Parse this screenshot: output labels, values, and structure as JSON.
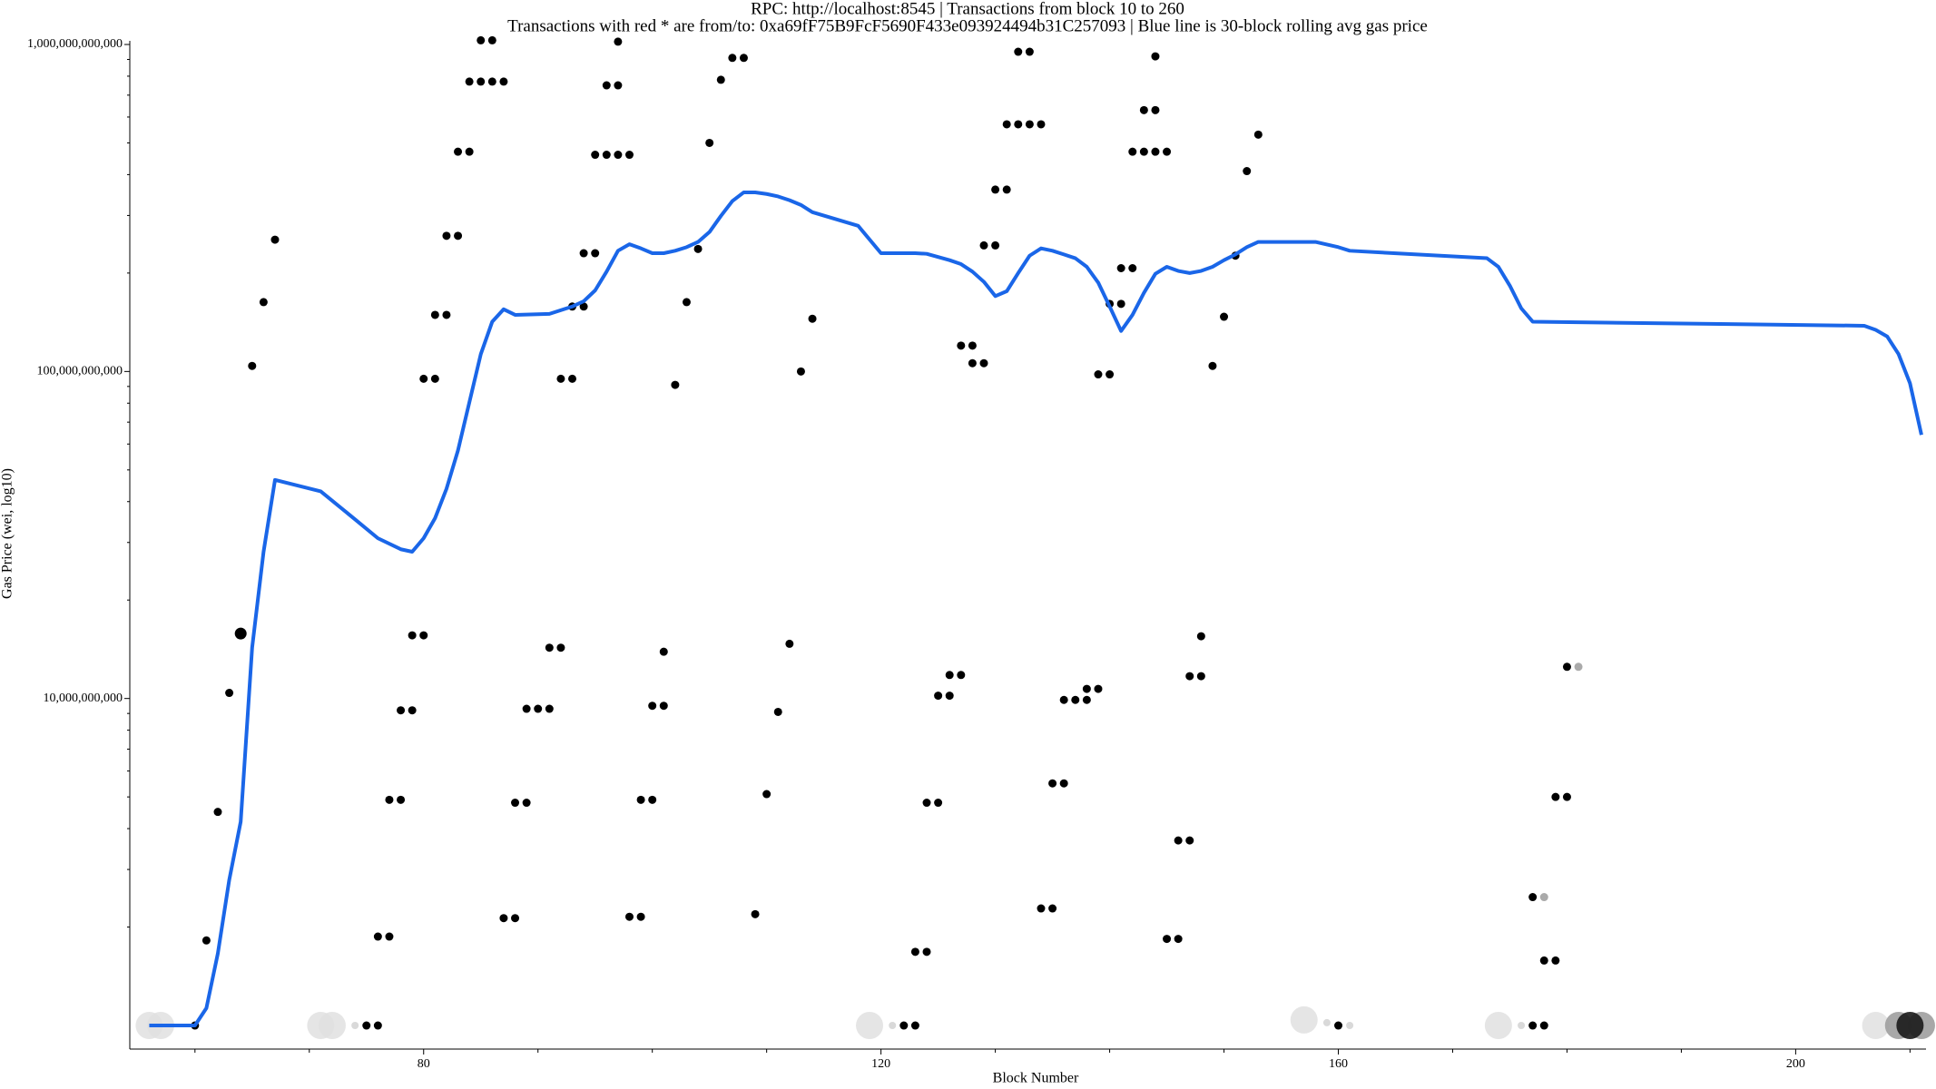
{
  "chart_data": {
    "type": "scatter",
    "title": "RPC: http://localhost:8545 | Transactions from block 10 to 260",
    "subtitle": "Transactions with red * are from/to: 0xa69fF75B9FcF5690F433e093924494b31C257093 | Blue line is 30-block rolling avg gas price",
    "x_label": "Block Number",
    "y_label": "Gas Price (wei, log10)",
    "log_y": true,
    "xlim": [
      54.3,
      211.4
    ],
    "ylim": [
      847000000,
      1026000000000
    ],
    "xticks": [
      80,
      120,
      160,
      200
    ],
    "xminor_ticks": [
      60,
      70,
      90,
      100,
      110,
      130,
      140,
      150,
      170,
      180,
      190,
      210
    ],
    "yticks": [
      {
        "value": 10000000000,
        "label": "10,000,000,000"
      },
      {
        "value": 100000000000,
        "label": "100,000,000,000"
      },
      {
        "value": 1000000000000,
        "label": "1,000,000,000,000"
      }
    ],
    "yminor_ticks": [
      2000000000.0,
      3000000000.0,
      4000000000.0,
      5000000000.0,
      6000000000.0,
      7000000000.0,
      8000000000.0,
      9000000000.0,
      20000000000.0,
      30000000000.0,
      40000000000.0,
      50000000000.0,
      60000000000.0,
      70000000000.0,
      80000000000.0,
      90000000000.0,
      200000000000.0,
      300000000000.0,
      400000000000.0,
      500000000000.0,
      600000000000.0,
      700000000000.0,
      800000000000.0,
      900000000000.0
    ],
    "series": [
      {
        "color": "#e0e0e0",
        "size": 15,
        "opacity": 0.85,
        "x": [
          56,
          57,
          71,
          72,
          119,
          157,
          174,
          207
        ],
        "values": [
          1000000000.0,
          1000000000.0,
          1000000000.0,
          1000000000.0,
          1000000000.0,
          1040000000.0,
          1000000000.0,
          1000000000.0
        ]
      },
      {
        "color": "#d9d9d9",
        "size": 4,
        "opacity": 1,
        "x": [
          74,
          121,
          159,
          161,
          176
        ],
        "values": [
          1000000000.0,
          1000000000.0,
          1020000000.0,
          1000000000.0,
          1000000000.0
        ]
      },
      {
        "color": "#9e9e9e",
        "size": 15,
        "opacity": 0.9,
        "x": [
          209,
          211
        ],
        "values": [
          1000000000.0,
          1000000000.0
        ]
      },
      {
        "color": "#1a1a1a",
        "size": 15,
        "opacity": 0.9,
        "x": [
          210
        ],
        "values": [
          1000000000.0
        ]
      },
      {
        "color": "#000000",
        "size": 4.5,
        "opacity": 1,
        "x": [
          60,
          61,
          62,
          63,
          65,
          66,
          67,
          75,
          76,
          76,
          77,
          77,
          78,
          78,
          79,
          79,
          80,
          80,
          81,
          81,
          82,
          82,
          83,
          83,
          84,
          84,
          85,
          86,
          87,
          85,
          86,
          87,
          88,
          88,
          89,
          89,
          90,
          91,
          91,
          92,
          92,
          93,
          93,
          94,
          94,
          95,
          95,
          96,
          97,
          98,
          96,
          97,
          97,
          98,
          99,
          99,
          100,
          100,
          101,
          101,
          102,
          103,
          104,
          105,
          106,
          107,
          108,
          109,
          110,
          111,
          112,
          113,
          114,
          122,
          123,
          123,
          124,
          124,
          125,
          125,
          126,
          126,
          127,
          127,
          128,
          128,
          129,
          129,
          130,
          130,
          131,
          131,
          132,
          133,
          134,
          132,
          133,
          134,
          135,
          135,
          136,
          136,
          137,
          138,
          138,
          139,
          139,
          140,
          140,
          141,
          141,
          142,
          142,
          143,
          144,
          145,
          143,
          144,
          144,
          145,
          146,
          146,
          147,
          147,
          148,
          148,
          149,
          150,
          151,
          152,
          153,
          160,
          177,
          178,
          177,
          178,
          179,
          179,
          180,
          180
        ],
        "values": [
          1000000000.0,
          1820000000.0,
          4500000000.0,
          10400000000.0,
          104000000000.0,
          163000000000.0,
          253000000000.0,
          1000000000.0,
          1000000000.0,
          1870000000.0,
          1870000000.0,
          4900000000.0,
          4900000000.0,
          9200000000.0,
          9200000000.0,
          15600000000.0,
          15600000000.0,
          95000000000.0,
          95000000000.0,
          149000000000.0,
          149000000000.0,
          260000000000.0,
          260000000000.0,
          470000000000.0,
          470000000000.0,
          770000000000.0,
          770000000000.0,
          770000000000.0,
          770000000000.0,
          1030000000000.0,
          1030000000000.0,
          2130000000.0,
          2130000000.0,
          4800000000.0,
          4800000000.0,
          9300000000.0,
          9300000000.0,
          9300000000.0,
          14300000000.0,
          14300000000.0,
          95000000000.0,
          95000000000.0,
          158000000000.0,
          158000000000.0,
          230000000000.0,
          230000000000.0,
          460000000000.0,
          460000000000.0,
          460000000000.0,
          460000000000.0,
          750000000000.0,
          750000000000.0,
          1020000000000.0,
          2150000000.0,
          2150000000.0,
          4900000000.0,
          4900000000.0,
          9500000000.0,
          9500000000.0,
          13900000000.0,
          91000000000.0,
          163000000000.0,
          237000000000.0,
          500000000000.0,
          780000000000.0,
          910000000000.0,
          910000000000.0,
          2190000000.0,
          5100000000.0,
          9100000000.0,
          14700000000.0,
          100000000000.0,
          145000000000.0,
          1000000000.0,
          1000000000.0,
          1680000000.0,
          1680000000.0,
          4800000000.0,
          4800000000.0,
          10200000000.0,
          10200000000.0,
          11800000000.0,
          11800000000.0,
          120000000000.0,
          120000000000.0,
          106000000000.0,
          106000000000.0,
          243000000000.0,
          243000000000.0,
          360000000000.0,
          360000000000.0,
          570000000000.0,
          570000000000.0,
          570000000000.0,
          570000000000.0,
          950000000000.0,
          950000000000.0,
          2280000000.0,
          2280000000.0,
          5500000000.0,
          5500000000.0,
          9900000000.0,
          9900000000.0,
          9900000000.0,
          10700000000.0,
          10700000000.0,
          98000000000.0,
          98000000000.0,
          161000000000.0,
          161000000000.0,
          207000000000.0,
          207000000000.0,
          470000000000.0,
          470000000000.0,
          470000000000.0,
          470000000000.0,
          630000000000.0,
          630000000000.0,
          920000000000.0,
          1840000000.0,
          1840000000.0,
          3680000000.0,
          3680000000.0,
          11700000000.0,
          11700000000.0,
          15500000000.0,
          104000000000.0,
          147000000000.0,
          226000000000.0,
          410000000000.0,
          530000000000.0,
          1000000000.0,
          1000000000.0,
          1000000000.0,
          2470000000.0,
          1580000000.0,
          1580000000.0,
          5000000000.0,
          5000000000.0,
          12500000000.0
        ]
      },
      {
        "color": "#000000",
        "size": 6.5,
        "opacity": 1,
        "x": [
          64
        ],
        "values": [
          15800000000.0
        ]
      },
      {
        "color": "#aaaaaa",
        "size": 4.5,
        "opacity": 1,
        "x": [
          178,
          181
        ],
        "values": [
          2470000000.0,
          12500000000.0
        ]
      }
    ],
    "line": {
      "color": "#1a66e8",
      "x": [
        56,
        60,
        61,
        62,
        63,
        64,
        65,
        66,
        67,
        71,
        74,
        76,
        78,
        79,
        80,
        81,
        82,
        83,
        84,
        85,
        86,
        87,
        88,
        91,
        93,
        94,
        95,
        96,
        97,
        98,
        99,
        100,
        101,
        102,
        103,
        104,
        105,
        106,
        107,
        108,
        109,
        110,
        111,
        112,
        113,
        114,
        118,
        120,
        123,
        124,
        125,
        126,
        127,
        128,
        129,
        130,
        131,
        132,
        133,
        134,
        135,
        136,
        137,
        138,
        139,
        140,
        141,
        142,
        143,
        144,
        145,
        146,
        147,
        148,
        149,
        150,
        151,
        152,
        153,
        158,
        160,
        161,
        173,
        174,
        175,
        176,
        177,
        206,
        207,
        208,
        209,
        210,
        211
      ],
      "values": [
        1000000000.0,
        1000000000.0,
        1130000000.0,
        1660000000.0,
        2790000000.0,
        4200000000.0,
        14300000000.0,
        28100000000.0,
        46600000000.0,
        43000000000.0,
        35300000000.0,
        30900000000.0,
        28600000000.0,
        28100000000.0,
        30900000000.0,
        35600000000.0,
        43800000000.0,
        57300000000.0,
        80500000000.0,
        113000000000.0,
        142000000000.0,
        155000000000.0,
        149000000000.0,
        150000000000.0,
        158000000000.0,
        164000000000.0,
        177000000000.0,
        202000000000.0,
        234000000000.0,
        245000000000.0,
        238000000000.0,
        230000000000.0,
        230000000000.0,
        234000000000.0,
        240000000000.0,
        249000000000.0,
        267000000000.0,
        299000000000.0,
        332000000000.0,
        353000000000.0,
        353000000000.0,
        349000000000.0,
        343000000000.0,
        334000000000.0,
        323000000000.0,
        307000000000.0,
        279000000000.0,
        230000000000.0,
        230000000000.0,
        229000000000.0,
        224000000000.0,
        219000000000.0,
        213000000000.0,
        202000000000.0,
        188000000000.0,
        170000000000.0,
        176000000000.0,
        200000000000.0,
        226000000000.0,
        238000000000.0,
        234000000000.0,
        228000000000.0,
        222000000000.0,
        209000000000.0,
        187000000000.0,
        158000000000.0,
        133000000000.0,
        149000000000.0,
        174000000000.0,
        199000000000.0,
        209000000000.0,
        203000000000.0,
        200000000000.0,
        203000000000.0,
        209000000000.0,
        219000000000.0,
        228000000000.0,
        240000000000.0,
        249000000000.0,
        249000000000.0,
        240000000000.0,
        234000000000.0,
        222000000000.0,
        209000000000.0,
        183000000000.0,
        156000000000.0,
        142000000000.0,
        138000000000.0,
        134000000000.0,
        128000000000.0,
        113000000000.0,
        92000000000.0,
        64000000000.0
      ]
    }
  }
}
